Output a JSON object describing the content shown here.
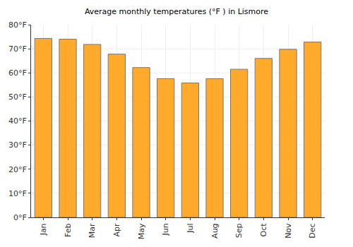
{
  "chart_data": {
    "type": "bar",
    "title": "Average monthly temperatures (°F ) in Lismore",
    "categories": [
      "Jan",
      "Feb",
      "Mar",
      "Apr",
      "May",
      "Jun",
      "Jul",
      "Aug",
      "Sep",
      "Oct",
      "Nov",
      "Dec"
    ],
    "values": [
      74.3,
      74,
      71.8,
      67.8,
      62.2,
      57.6,
      55.8,
      57.6,
      61.5,
      66,
      69.8,
      72.8
    ],
    "color": "#ffaa2b",
    "ylim": [
      0,
      80
    ],
    "yticks": [
      {
        "value": 0,
        "label": "0°F"
      },
      {
        "value": 10,
        "label": "10°F"
      },
      {
        "value": 20,
        "label": "20°F"
      },
      {
        "value": 30,
        "label": "30°F"
      },
      {
        "value": 40,
        "label": "40°F"
      },
      {
        "value": 50,
        "label": "50°F"
      },
      {
        "value": 60,
        "label": "60°F"
      },
      {
        "value": 70,
        "label": "70°F"
      },
      {
        "value": 80,
        "label": "80°F"
      }
    ],
    "grid": true
  }
}
